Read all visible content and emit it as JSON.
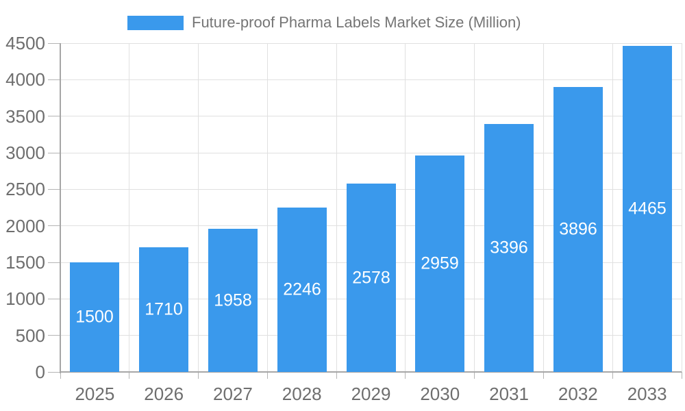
{
  "legend": {
    "label": "Future-proof Pharma Labels Market Size (Million)"
  },
  "colors": {
    "bar": "#3A99EC",
    "grid": "#E0E0E0",
    "axis": "#A6A6A6",
    "tick": "#B4B4B4",
    "tick_text": "#6E6E6E",
    "legend_text": "#757575",
    "value_label": "#FFFFFF",
    "background": "#FFFFFF"
  },
  "chart_data": {
    "type": "bar",
    "title": "Future-proof Pharma Labels Market Size (Million)",
    "categories": [
      "2025",
      "2026",
      "2027",
      "2028",
      "2029",
      "2030",
      "2031",
      "2032",
      "2033"
    ],
    "values": [
      1500,
      1710,
      1958,
      2246,
      2578,
      2959,
      3396,
      3896,
      4465
    ],
    "xlabel": "",
    "ylabel": "",
    "ylim": [
      0,
      4500
    ],
    "ytick_step": 500,
    "grid": true,
    "legend_position": "top-center",
    "value_label_position": "inside-center"
  }
}
